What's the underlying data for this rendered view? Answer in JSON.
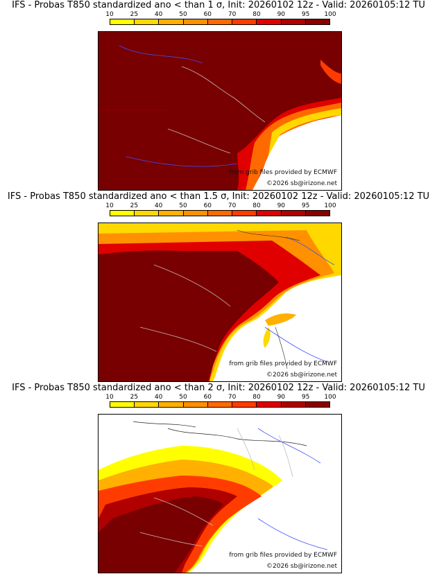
{
  "scale": {
    "labels": [
      "10",
      "25",
      "40",
      "50",
      "60",
      "70",
      "80",
      "90",
      "95",
      "100"
    ],
    "colors": [
      "#ffff00",
      "#ffd800",
      "#ffb000",
      "#ff9000",
      "#ff6a00",
      "#ff3c00",
      "#e00000",
      "#b00000",
      "#8a0000"
    ]
  },
  "panels": [
    {
      "title": "IFS - Probas T850  standardized ano < than 1 σ, Init: 20260102 12z - Valid: 20260105:12 TU",
      "sigma": "1"
    },
    {
      "title": "IFS - Probas T850  standardized ano < than 1.5 σ, Init: 20260102 12z - Valid: 20260105:12 TU",
      "sigma": "1.5"
    },
    {
      "title": "IFS - Probas T850  standardized ano < than 2 σ, Init: 20260102 12z - Valid: 20260105:12 TU",
      "sigma": "2"
    }
  ],
  "credits": {
    "source": "from grib files provided by ECMWF",
    "copyright": "©2026 sb@irizone.net"
  }
}
